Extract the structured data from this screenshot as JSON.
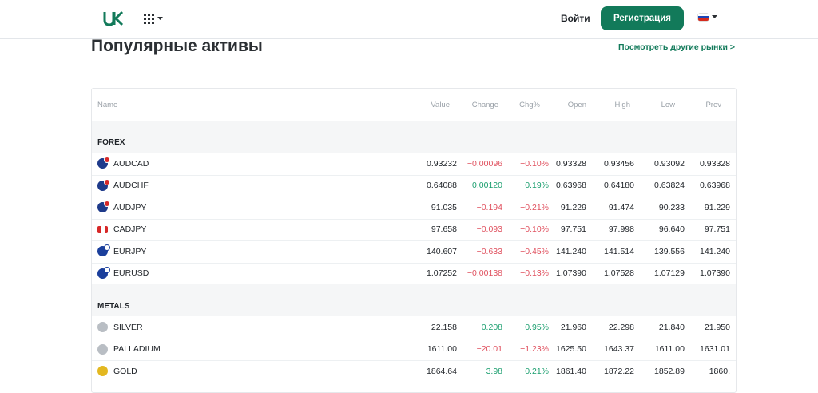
{
  "header": {
    "logo_text": "UK",
    "login_label": "Войти",
    "register_label": "Регистрация",
    "language": "ru"
  },
  "section": {
    "title": "Популярные активы",
    "more_link": "Посмотреть другие рынки >"
  },
  "table": {
    "columns": [
      "Name",
      "Value",
      "Change",
      "Chg%",
      "Open",
      "High",
      "Low",
      "Prev"
    ],
    "groups": [
      {
        "label": "FOREX",
        "rows": [
          {
            "name": "AUDCAD",
            "value": "0.93232",
            "change": "−0.00096",
            "chg": "−0.10%",
            "open": "0.93328",
            "high": "0.93456",
            "low": "0.93092",
            "prev": "0.93328",
            "dir": "neg",
            "icon": "au-ca-flag-icon"
          },
          {
            "name": "AUDCHF",
            "value": "0.64088",
            "change": "0.00120",
            "chg": "0.19%",
            "open": "0.63968",
            "high": "0.64180",
            "low": "0.63824",
            "prev": "0.63968",
            "dir": "pos",
            "icon": "au-ch-flag-icon"
          },
          {
            "name": "AUDJPY",
            "value": "91.035",
            "change": "−0.194",
            "chg": "−0.21%",
            "open": "91.229",
            "high": "91.474",
            "low": "90.233",
            "prev": "91.229",
            "dir": "neg",
            "icon": "au-jp-flag-icon"
          },
          {
            "name": "CADJPY",
            "value": "97.658",
            "change": "−0.093",
            "chg": "−0.10%",
            "open": "97.751",
            "high": "97.998",
            "low": "96.640",
            "prev": "97.751",
            "dir": "neg",
            "icon": "ca-jp-flag-icon"
          },
          {
            "name": "EURJPY",
            "value": "140.607",
            "change": "−0.633",
            "chg": "−0.45%",
            "open": "141.240",
            "high": "141.514",
            "low": "139.556",
            "prev": "141.240",
            "dir": "neg",
            "icon": "eu-jp-flag-icon"
          },
          {
            "name": "EURUSD",
            "value": "1.07252",
            "change": "−0.00138",
            "chg": "−0.13%",
            "open": "1.07390",
            "high": "1.07528",
            "low": "1.07129",
            "prev": "1.07390",
            "dir": "neg",
            "icon": "eu-us-flag-icon"
          }
        ]
      },
      {
        "label": "METALS",
        "rows": [
          {
            "name": "SILVER",
            "value": "22.158",
            "change": "0.208",
            "chg": "0.95%",
            "open": "21.960",
            "high": "22.298",
            "low": "21.840",
            "prev": "21.950",
            "dir": "pos",
            "icon": "silver-icon"
          },
          {
            "name": "PALLADIUM",
            "value": "1611.00",
            "change": "−20.01",
            "chg": "−1.23%",
            "open": "1625.50",
            "high": "1643.37",
            "low": "1611.00",
            "prev": "1631.01",
            "dir": "neg",
            "icon": "palladium-icon"
          },
          {
            "name": "GOLD",
            "value": "1864.64",
            "change": "3.98",
            "chg": "0.21%",
            "open": "1861.40",
            "high": "1872.22",
            "low": "1852.89",
            "prev": "1860.",
            "dir": "pos",
            "icon": "gold-icon"
          }
        ]
      }
    ]
  },
  "colors": {
    "accent": "#127a5a",
    "negative": "#e0515f",
    "positive": "#1a9e6e"
  }
}
